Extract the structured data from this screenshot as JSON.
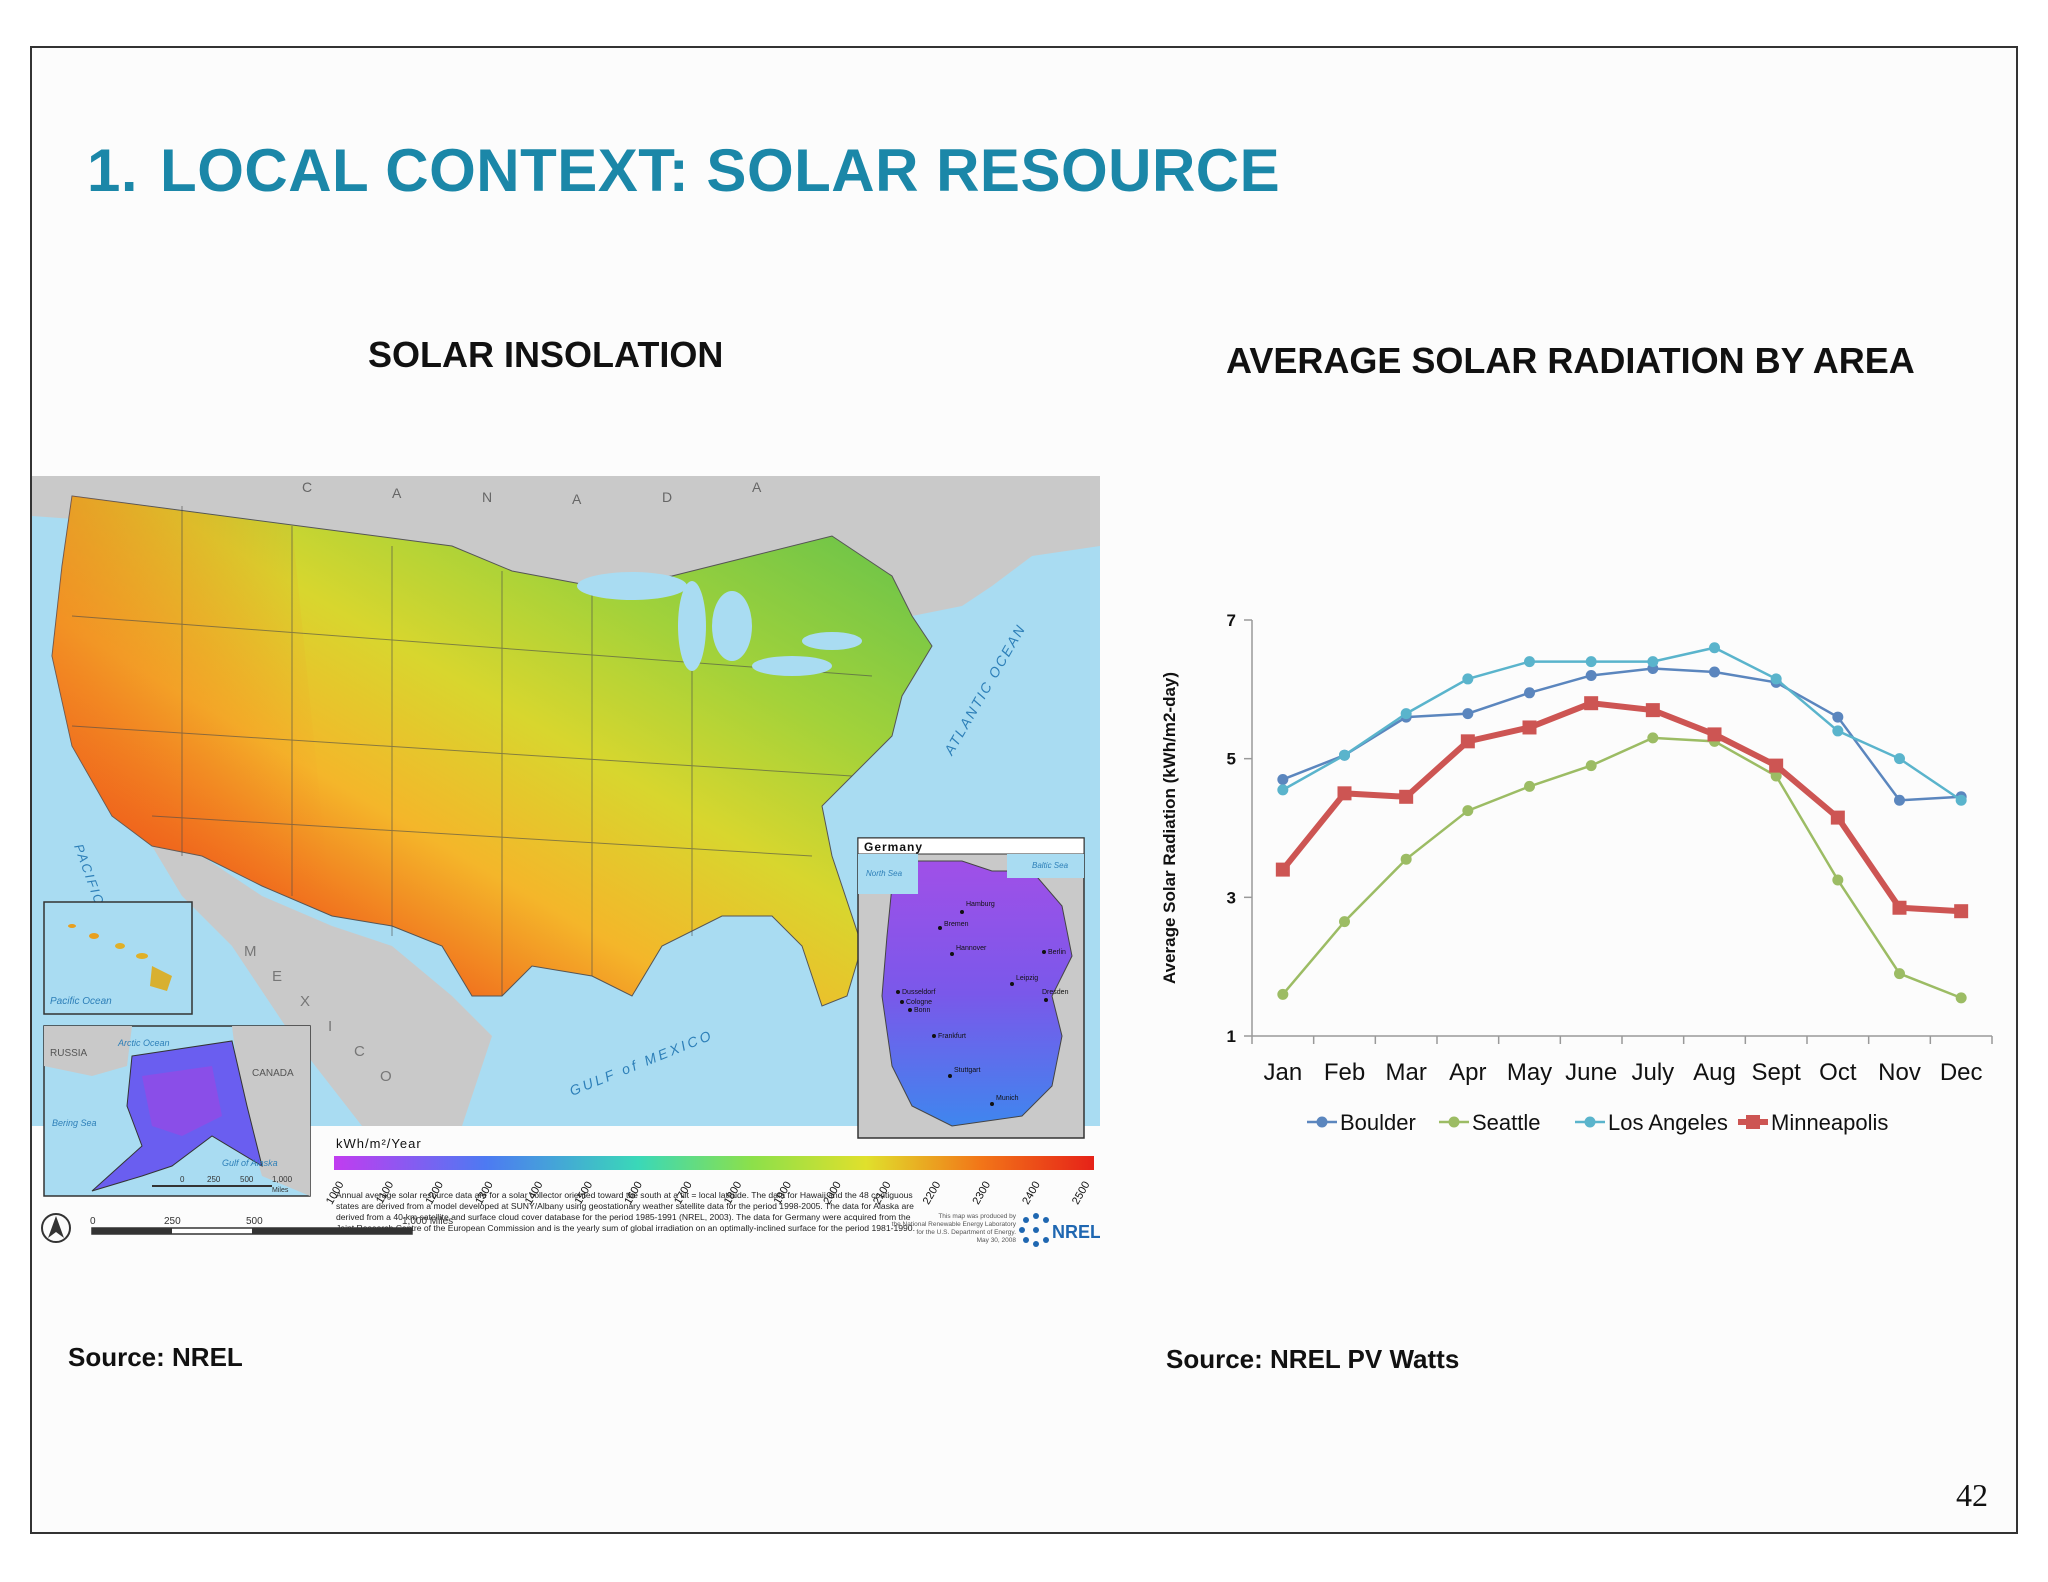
{
  "slide": {
    "title_number": "1.",
    "title": "LOCAL CONTEXT: SOLAR RESOURCE",
    "left_heading": "SOLAR INSOLATION",
    "right_heading": "AVERAGE SOLAR RADIATION BY AREA",
    "left_source": "Source: NREL",
    "right_source": "Source: NREL PV Watts",
    "page_number": "42"
  },
  "map": {
    "country_label": [
      "C",
      "A",
      "N",
      "A",
      "D",
      "A"
    ],
    "ocean_atlantic": "ATLANTIC OCEAN",
    "ocean_pacific": "PACIFIC OCEAN",
    "gulf": "GULF of MEXICO",
    "mexico": [
      "M",
      "E",
      "X",
      "I",
      "C",
      "O"
    ],
    "inset_germany_title": "Germany",
    "inset_germany_labels": {
      "north_sea": "North Sea",
      "baltic_sea": "Baltic Sea",
      "hamburg": "Hamburg",
      "bremen": "Bremen",
      "hannover": "Hannover",
      "berlin": "Berlin",
      "leipzig": "Leipzig",
      "dresden": "Dresden",
      "dusseldorf": "Dusseldorf",
      "cologne": "Cologne",
      "bonn": "Bonn",
      "frankfurt": "Frankfurt",
      "stuttgart": "Stuttgart",
      "munich": "Munich"
    },
    "inset_hawaii_label": "Pacific Ocean",
    "inset_alaska": {
      "russia": "RUSSIA",
      "canada": "CANADA",
      "arctic": "Arctic Ocean",
      "bering": "Bering Sea",
      "gulf_alaska": "Gulf of Alaska"
    },
    "legend_title": "kWh/m²/Year",
    "legend_ticks": [
      "1000",
      "1100",
      "1200",
      "1300",
      "1400",
      "1500",
      "1600",
      "1700",
      "1800",
      "1900",
      "2000",
      "2100",
      "2200",
      "2300",
      "2400",
      "2500"
    ],
    "legend_colors": [
      "#c13cf0",
      "#9a48f0",
      "#6f5ef2",
      "#4d7af2",
      "#3a9ef0",
      "#2fc2e6",
      "#3ad8b8",
      "#5fe07e",
      "#8ce04a",
      "#b8e036",
      "#e0e02c",
      "#f2c81e",
      "#f4a01a",
      "#f27618",
      "#ee4a18",
      "#e62218"
    ],
    "note_lines": [
      "Annual average solar resource data are for a solar collector oriented toward the south at a tilt = local latitude.  The data for Hawaii and the 48 contiguous",
      "states are derived from a model developed at SUNY/Albany using geostationary weather satellite data for the period 1998-2005. The data for Alaska are",
      "derived from a 40-km satellite and surface cloud cover database for the period 1985-1991 (NREL, 2003).  The data for Germany were acquired from the",
      "Joint Research Centre of the European Commission and is the yearly sum of global irradiation on an optimally-inclined surface for the period 1981-1990."
    ],
    "credit_lines": [
      "This map was produced by",
      "the National Renewable Energy Laboratory",
      "for the U.S. Department of Energy.",
      "May 30, 2008"
    ],
    "nrel_logo": "NREL",
    "scale_ticks": [
      "0",
      "250",
      "500",
      "1,000  Miles"
    ],
    "alaska_scale": [
      "0",
      "250",
      "500",
      "1,000"
    ],
    "alaska_scale_unit": "Miles"
  },
  "chart_data": {
    "type": "line",
    "title": "",
    "xlabel": "",
    "ylabel": "Average Solar Radiation (kWh/m2-day)",
    "categories": [
      "Jan",
      "Feb",
      "Mar",
      "Apr",
      "May",
      "June",
      "July",
      "Aug",
      "Sept",
      "Oct",
      "Nov",
      "Dec"
    ],
    "ylim": [
      1,
      7
    ],
    "yticks": [
      1,
      3,
      5,
      7
    ],
    "legend_position": "bottom",
    "series": [
      {
        "name": "Boulder",
        "color": "#5b86be",
        "marker": "circle",
        "values": [
          4.7,
          5.05,
          5.6,
          5.65,
          5.95,
          6.2,
          6.3,
          6.25,
          6.1,
          5.6,
          4.4,
          4.45
        ]
      },
      {
        "name": "Seattle",
        "color": "#9cbc64",
        "marker": "circle",
        "values": [
          1.6,
          2.65,
          3.55,
          4.25,
          4.6,
          4.9,
          5.3,
          5.25,
          4.75,
          3.25,
          1.9,
          1.55
        ]
      },
      {
        "name": "Los Angeles",
        "color": "#5ab4cc",
        "marker": "circle",
        "values": [
          4.55,
          5.05,
          5.65,
          6.15,
          6.4,
          6.4,
          6.4,
          6.6,
          6.15,
          5.4,
          5.0,
          4.4
        ]
      },
      {
        "name": "Minneapolis",
        "color": "#cd5553",
        "marker": "square",
        "values": [
          3.4,
          4.5,
          4.45,
          5.25,
          5.45,
          5.8,
          5.7,
          5.35,
          4.9,
          4.15,
          2.85,
          2.8
        ]
      }
    ]
  }
}
